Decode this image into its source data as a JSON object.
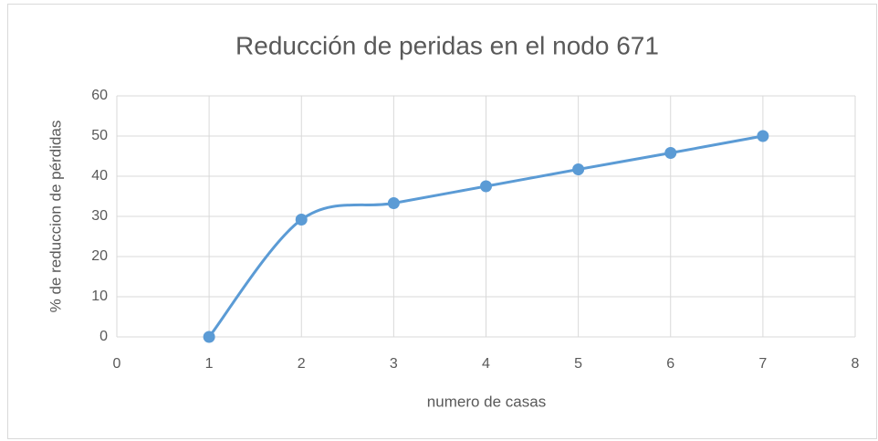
{
  "chart_data": {
    "type": "scatter",
    "title": "Reducción de peridas en el nodo 671",
    "x_label": "numero de casas",
    "y_label": "% de reduccion de pérdidas",
    "x": [
      1,
      2,
      3,
      4,
      5,
      6,
      7
    ],
    "series": [
      {
        "name": "% de reduccion de pérdidas",
        "color": "#5b9bd5",
        "values": [
          0,
          29.2,
          33.3,
          37.5,
          41.7,
          45.8,
          50
        ]
      }
    ],
    "xlim": [
      0,
      8
    ],
    "xticks": [
      0,
      1,
      2,
      3,
      4,
      5,
      6,
      7,
      8
    ],
    "ylim": [
      0,
      60
    ],
    "yticks": [
      0,
      10,
      20,
      30,
      40,
      50,
      60
    ],
    "grid": true,
    "smooth": true
  }
}
